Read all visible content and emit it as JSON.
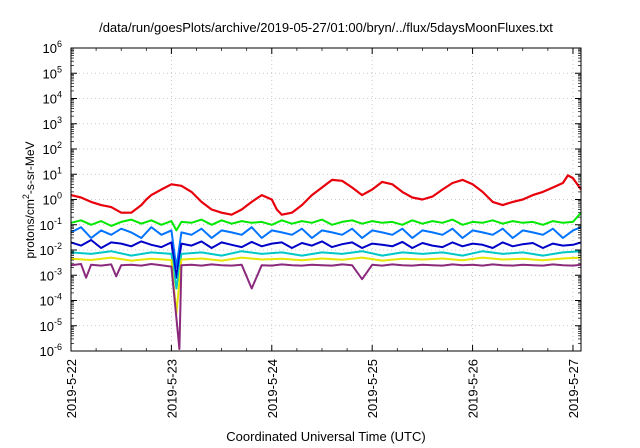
{
  "chart_data": {
    "type": "line",
    "title": "/data/run/goesPlots/archive/2019-05-27/01:00/bryn/../flux/5daysMoonFluxes.txt",
    "xlabel": "Coordinated Universal Time (UTC)",
    "ylabel": {
      "prefix": "protons/cm",
      "sup": "2",
      "suffix": "-s-sr-MeV"
    },
    "x_ticks": [
      "2019-5-22",
      "2019-5-23",
      "2019-5-24",
      "2019-5-25",
      "2019-5-26",
      "2019-5-27"
    ],
    "x_range_days": [
      0,
      5.08
    ],
    "y_scale": "log",
    "ylim": [
      1e-06,
      1000000.0
    ],
    "y_ticks": [
      {
        "base": "10",
        "exp": "-6",
        "value": 1e-06
      },
      {
        "base": "10",
        "exp": "-5",
        "value": 1e-05
      },
      {
        "base": "10",
        "exp": "-4",
        "value": 0.0001
      },
      {
        "base": "10",
        "exp": "-3",
        "value": 0.001
      },
      {
        "base": "10",
        "exp": "-2",
        "value": 0.01
      },
      {
        "base": "10",
        "exp": "-1",
        "value": 0.1
      },
      {
        "base": "10",
        "exp": "0",
        "value": 1
      },
      {
        "base": "10",
        "exp": "1",
        "value": 10
      },
      {
        "base": "10",
        "exp": "2",
        "value": 100
      },
      {
        "base": "10",
        "exp": "3",
        "value": 1000
      },
      {
        "base": "10",
        "exp": "4",
        "value": 10000
      },
      {
        "base": "10",
        "exp": "5",
        "value": 100000
      },
      {
        "base": "10",
        "exp": "6",
        "value": 1000000
      }
    ],
    "grid": true,
    "series": [
      {
        "color": "#e8000b",
        "x": [
          0,
          0.1,
          0.2,
          0.3,
          0.4,
          0.5,
          0.6,
          0.7,
          0.75,
          0.8,
          0.9,
          1.0,
          1.1,
          1.2,
          1.3,
          1.4,
          1.5,
          1.6,
          1.7,
          1.8,
          1.9,
          2.0,
          2.05,
          2.1,
          2.2,
          2.3,
          2.4,
          2.5,
          2.6,
          2.7,
          2.8,
          2.9,
          3.0,
          3.1,
          3.2,
          3.3,
          3.4,
          3.5,
          3.6,
          3.7,
          3.8,
          3.9,
          4.0,
          4.1,
          4.2,
          4.3,
          4.4,
          4.5,
          4.6,
          4.7,
          4.8,
          4.9,
          4.95,
          5.0,
          5.08
        ],
        "y": [
          1.5,
          1.2,
          0.8,
          0.6,
          0.5,
          0.3,
          0.3,
          0.6,
          1.0,
          1.5,
          2.5,
          4.0,
          3.5,
          2.0,
          0.8,
          0.4,
          0.3,
          0.25,
          0.4,
          0.8,
          1.5,
          1.0,
          0.4,
          0.25,
          0.3,
          0.6,
          1.5,
          3.0,
          6.0,
          5.5,
          3.0,
          1.5,
          2.5,
          5.0,
          4.0,
          2.0,
          1.2,
          1.0,
          1.3,
          2.5,
          4.5,
          6.0,
          4.0,
          2.0,
          0.8,
          0.6,
          0.8,
          1.0,
          1.5,
          2.0,
          3.0,
          4.5,
          9.0,
          7.0,
          2.5
        ]
      },
      {
        "color": "#00e800",
        "x": [
          0,
          0.1,
          0.2,
          0.3,
          0.4,
          0.5,
          0.6,
          0.7,
          0.8,
          0.9,
          1.0,
          1.05,
          1.1,
          1.2,
          1.3,
          1.4,
          1.5,
          1.6,
          1.7,
          1.8,
          1.9,
          2.0,
          2.1,
          2.2,
          2.3,
          2.4,
          2.5,
          2.6,
          2.7,
          2.8,
          2.9,
          3.0,
          3.1,
          3.2,
          3.3,
          3.4,
          3.5,
          3.6,
          3.7,
          3.8,
          3.9,
          4.0,
          4.1,
          4.2,
          4.3,
          4.4,
          4.5,
          4.6,
          4.7,
          4.8,
          4.9,
          5.0,
          5.08
        ],
        "y": [
          0.12,
          0.15,
          0.1,
          0.14,
          0.09,
          0.13,
          0.16,
          0.11,
          0.15,
          0.1,
          0.14,
          0.06,
          0.13,
          0.12,
          0.16,
          0.1,
          0.15,
          0.11,
          0.14,
          0.12,
          0.13,
          0.1,
          0.15,
          0.11,
          0.14,
          0.12,
          0.16,
          0.1,
          0.13,
          0.15,
          0.11,
          0.14,
          0.12,
          0.13,
          0.1,
          0.15,
          0.11,
          0.14,
          0.12,
          0.16,
          0.1,
          0.13,
          0.12,
          0.15,
          0.11,
          0.14,
          0.12,
          0.13,
          0.1,
          0.14,
          0.12,
          0.13,
          0.3
        ]
      },
      {
        "color": "#0073ff",
        "x": [
          0,
          0.1,
          0.2,
          0.3,
          0.4,
          0.5,
          0.6,
          0.7,
          0.8,
          0.9,
          1.0,
          1.05,
          1.1,
          1.2,
          1.3,
          1.4,
          1.5,
          1.6,
          1.7,
          1.8,
          1.9,
          2.0,
          2.1,
          2.2,
          2.3,
          2.4,
          2.5,
          2.6,
          2.7,
          2.8,
          2.9,
          3.0,
          3.1,
          3.2,
          3.3,
          3.4,
          3.5,
          3.6,
          3.7,
          3.8,
          3.9,
          4.0,
          4.1,
          4.2,
          4.3,
          4.4,
          4.5,
          4.6,
          4.7,
          4.8,
          4.9,
          5.0,
          5.08
        ],
        "y": [
          0.05,
          0.08,
          0.03,
          0.06,
          0.04,
          0.07,
          0.05,
          0.03,
          0.08,
          0.04,
          0.06,
          0.002,
          0.05,
          0.04,
          0.07,
          0.03,
          0.06,
          0.05,
          0.04,
          0.08,
          0.03,
          0.06,
          0.05,
          0.04,
          0.07,
          0.03,
          0.06,
          0.05,
          0.04,
          0.07,
          0.03,
          0.06,
          0.05,
          0.04,
          0.07,
          0.03,
          0.06,
          0.05,
          0.04,
          0.07,
          0.03,
          0.06,
          0.05,
          0.04,
          0.07,
          0.03,
          0.06,
          0.05,
          0.04,
          0.07,
          0.03,
          0.06,
          0.08
        ]
      },
      {
        "color": "#0000c8",
        "x": [
          0,
          0.1,
          0.2,
          0.3,
          0.4,
          0.5,
          0.6,
          0.7,
          0.8,
          0.9,
          1.0,
          1.05,
          1.1,
          1.2,
          1.3,
          1.4,
          1.5,
          1.6,
          1.7,
          1.8,
          1.9,
          2.0,
          2.1,
          2.2,
          2.3,
          2.4,
          2.5,
          2.6,
          2.7,
          2.8,
          2.9,
          3.0,
          3.1,
          3.2,
          3.3,
          3.4,
          3.5,
          3.6,
          3.7,
          3.8,
          3.9,
          4.0,
          4.1,
          4.2,
          4.3,
          4.4,
          4.5,
          4.6,
          4.7,
          4.8,
          4.9,
          5.0,
          5.08
        ],
        "y": [
          0.02,
          0.015,
          0.025,
          0.012,
          0.02,
          0.018,
          0.014,
          0.022,
          0.016,
          0.013,
          0.02,
          0.0008,
          0.018,
          0.015,
          0.022,
          0.012,
          0.02,
          0.016,
          0.013,
          0.021,
          0.014,
          0.018,
          0.02,
          0.012,
          0.019,
          0.015,
          0.022,
          0.013,
          0.017,
          0.02,
          0.012,
          0.018,
          0.016,
          0.014,
          0.021,
          0.012,
          0.019,
          0.015,
          0.013,
          0.02,
          0.014,
          0.018,
          0.016,
          0.012,
          0.02,
          0.014,
          0.017,
          0.019,
          0.012,
          0.018,
          0.015,
          0.016,
          0.02
        ]
      },
      {
        "color": "#00c8c8",
        "x": [
          0,
          0.2,
          0.4,
          0.6,
          0.8,
          1.0,
          1.05,
          1.1,
          1.3,
          1.5,
          1.7,
          1.9,
          2.1,
          2.3,
          2.5,
          2.7,
          2.9,
          3.1,
          3.3,
          3.5,
          3.7,
          3.9,
          4.1,
          4.3,
          4.5,
          4.7,
          4.9,
          5.08
        ],
        "y": [
          0.008,
          0.007,
          0.009,
          0.006,
          0.008,
          0.007,
          0.0003,
          0.007,
          0.008,
          0.006,
          0.009,
          0.007,
          0.008,
          0.006,
          0.008,
          0.007,
          0.009,
          0.006,
          0.008,
          0.007,
          0.008,
          0.006,
          0.009,
          0.007,
          0.008,
          0.006,
          0.008,
          0.009
        ]
      },
      {
        "color": "#e6e600",
        "x": [
          0,
          0.2,
          0.4,
          0.6,
          0.8,
          1.0,
          1.05,
          1.1,
          1.3,
          1.5,
          1.7,
          1.9,
          2.1,
          2.3,
          2.5,
          2.7,
          2.9,
          3.1,
          3.3,
          3.5,
          3.7,
          3.9,
          4.1,
          4.3,
          4.5,
          4.7,
          4.9,
          5.08
        ],
        "y": [
          0.0045,
          0.004,
          0.005,
          0.0038,
          0.0045,
          0.004,
          3e-05,
          0.0042,
          0.0046,
          0.0038,
          0.005,
          0.0042,
          0.0045,
          0.0039,
          0.0046,
          0.0041,
          0.005,
          0.0038,
          0.0045,
          0.0042,
          0.0046,
          0.0039,
          0.005,
          0.0042,
          0.0045,
          0.0039,
          0.0046,
          0.005
        ]
      },
      {
        "color": "#8b2a7c",
        "x": [
          0,
          0.1,
          0.15,
          0.2,
          0.3,
          0.4,
          0.45,
          0.5,
          0.6,
          0.7,
          0.8,
          0.9,
          1.0,
          1.08,
          1.1,
          1.2,
          1.3,
          1.4,
          1.5,
          1.6,
          1.7,
          1.8,
          1.9,
          2.0,
          2.1,
          2.2,
          2.3,
          2.4,
          2.5,
          2.6,
          2.7,
          2.8,
          2.9,
          3.0,
          3.1,
          3.2,
          3.3,
          3.4,
          3.5,
          3.6,
          3.7,
          3.8,
          3.9,
          4.0,
          4.1,
          4.2,
          4.3,
          4.4,
          4.5,
          4.6,
          4.7,
          4.8,
          4.9,
          5.0,
          5.08
        ],
        "y": [
          0.0025,
          0.0028,
          0.0008,
          0.0026,
          0.0024,
          0.0027,
          0.0009,
          0.0025,
          0.0026,
          0.0024,
          0.0028,
          0.0025,
          0.0022,
          1.2e-06,
          0.0025,
          0.0026,
          0.0024,
          0.0027,
          0.0025,
          0.0024,
          0.0026,
          0.0003,
          0.0025,
          0.0024,
          0.0027,
          0.0025,
          0.0024,
          0.0026,
          0.0025,
          0.0024,
          0.0027,
          0.0025,
          0.0007,
          0.0026,
          0.0024,
          0.0027,
          0.0025,
          0.0024,
          0.0026,
          0.0025,
          0.0024,
          0.0027,
          0.0025,
          0.0026,
          0.0024,
          0.0027,
          0.0025,
          0.0024,
          0.0026,
          0.0025,
          0.0024,
          0.0027,
          0.0025,
          0.0024,
          0.0026
        ]
      }
    ]
  }
}
